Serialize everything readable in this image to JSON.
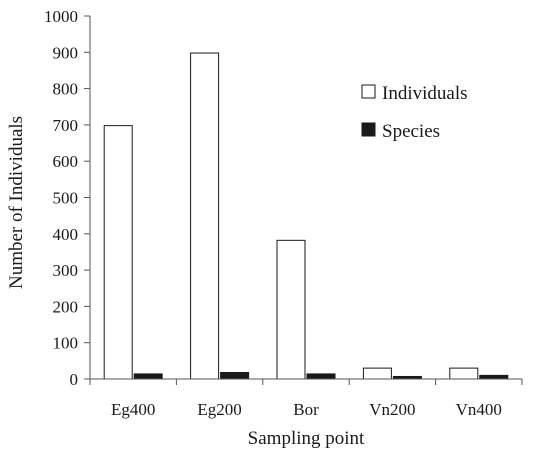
{
  "chart_data": {
    "type": "bar",
    "title": "",
    "xlabel": "Sampling point",
    "ylabel": "Number of Individuals",
    "categories": [
      "Eg400",
      "Eg200",
      "Bor",
      "Vn200",
      "Vn400"
    ],
    "series": [
      {
        "name": "Individuals",
        "values": [
          698,
          898,
          382,
          30,
          30
        ],
        "color": "#ffffff"
      },
      {
        "name": "Species",
        "values": [
          14,
          18,
          14,
          7,
          10
        ],
        "color": "#1a1a1a"
      }
    ],
    "ylim": [
      0,
      1000
    ],
    "yticks": [
      "0",
      "100",
      "200",
      "300",
      "400",
      "500",
      "600",
      "700",
      "800",
      "900",
      "1000"
    ],
    "grid": false,
    "legend_position": "top-right"
  }
}
